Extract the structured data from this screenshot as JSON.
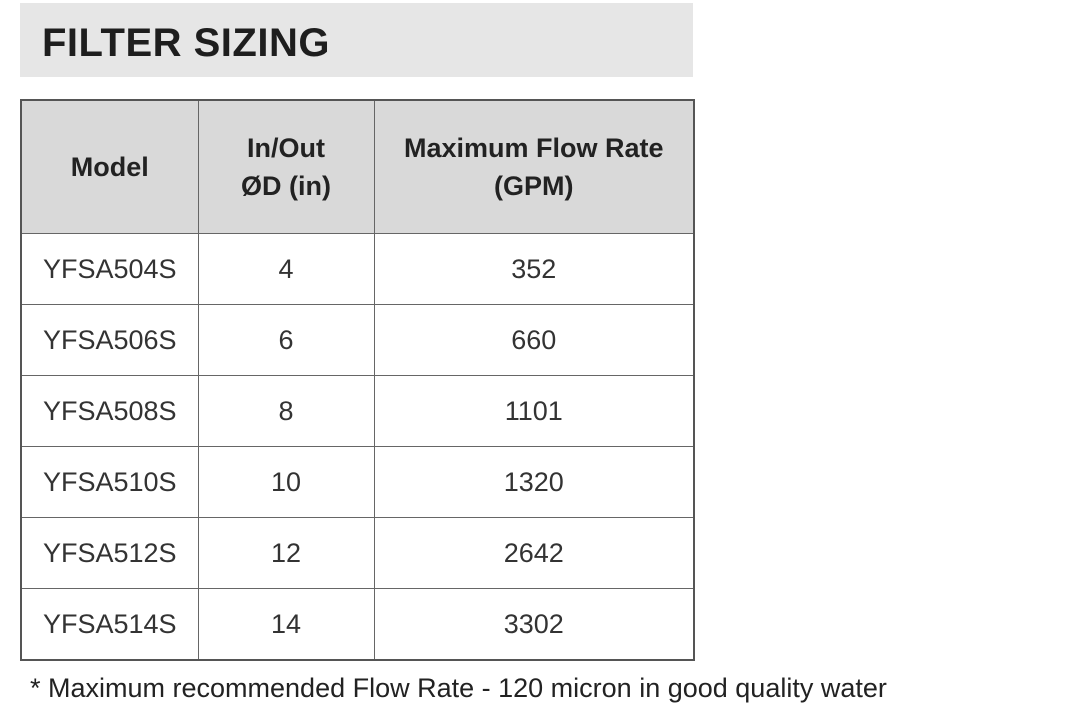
{
  "title": "FILTER SIZING",
  "table": {
    "header": [
      [
        "Model"
      ],
      [
        "In/Out",
        "ØD (in)"
      ],
      [
        "Maximum Flow Rate",
        "(GPM)"
      ]
    ],
    "rows": [
      [
        "YFSA504S",
        "4",
        "352"
      ],
      [
        "YFSA506S",
        "6",
        "660"
      ],
      [
        "YFSA508S",
        "8",
        "1101"
      ],
      [
        "YFSA510S",
        "10",
        "1320"
      ],
      [
        "YFSA512S",
        "12",
        "2642"
      ],
      [
        "YFSA514S",
        "14",
        "3302"
      ]
    ]
  },
  "footnote": "* Maximum recommended Flow Rate - 120 micron in good quality water"
}
